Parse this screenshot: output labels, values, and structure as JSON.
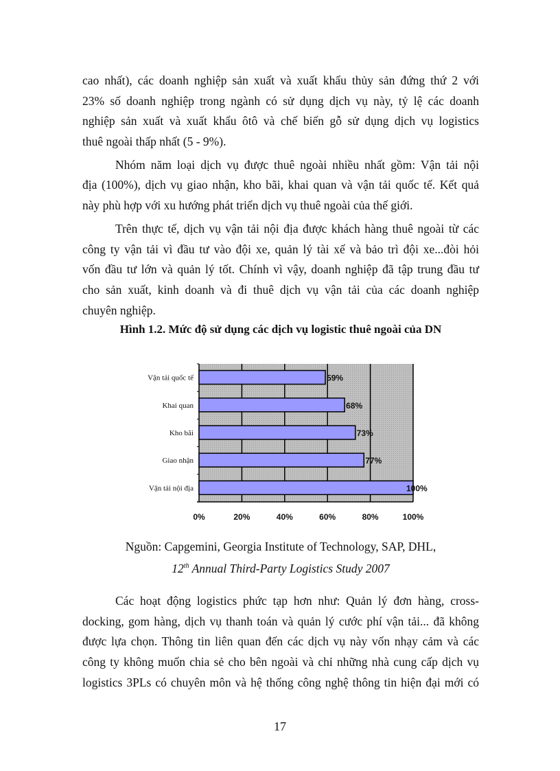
{
  "paragraphs_top": [
    {
      "indent": false,
      "lines": [
        "cao nhất), các doanh nghiệp sản xuất và xuất khẩu thủy sản đứng thứ 2 với",
        "23% số doanh nghiệp trong ngành có sử dụng dịch vụ này, tỷ lệ các doanh",
        "nghiệp sản xuất và xuất khẩu ôtô và chế biến gỗ sử dụng dịch vụ logistics",
        "thuê ngoài thấp nhất (5 - 9%)."
      ]
    },
    {
      "indent": true,
      "lines": [
        "Nhóm năm loại dịch vụ được thuê ngoài nhiều nhất gồm: Vận tải nội",
        "địa (100%), dịch vụ giao nhận, kho bãi, khai quan và vận tải quốc tế. Kết quả",
        "này phù hợp với xu hướng phát triển dịch vụ thuê ngoài của thế giới."
      ]
    },
    {
      "indent": true,
      "lines": [
        "Trên thực tế, dịch vụ vận tải nội địa được khách hàng thuê ngoài từ các",
        "công ty vận tải vì đầu tư vào đội xe, quản lý tài xế và bảo trì đội xe...đòi hỏi",
        "vốn đầu tư lớn và quản lý tốt. Chính vì vậy, doanh nghiệp đã tập trung đầu tư",
        "cho sản xuất, kinh doanh và đi thuê dịch vụ vận tải của các doanh nghiệp",
        "chuyên nghiệp."
      ]
    }
  ],
  "figure_caption": "Hình 1.2. Mức độ sử dụng các dịch vụ logistic thuê ngoài  của DN",
  "chart_data": {
    "type": "bar",
    "orientation": "horizontal",
    "categories": [
      "Vận tải quốc tế",
      "Khai quan",
      "Kho bãi",
      "Giao nhận",
      "Vận tải nội địa"
    ],
    "values": [
      59,
      68,
      73,
      77,
      100
    ],
    "data_labels": [
      "59%",
      "68%",
      "73%",
      "77%",
      "100%"
    ],
    "xticks": [
      "0%",
      "20%",
      "40%",
      "60%",
      "80%",
      "100%"
    ],
    "xlim": [
      0,
      100
    ],
    "title": "",
    "xlabel": "",
    "ylabel": "",
    "grid": true,
    "legend": "none",
    "bar_color": "#9999ff",
    "plot_background": "#c0c0c0"
  },
  "source": {
    "line1": "Nguồn: Capgemini, Georgia Institute of Technology, SAP, DHL,",
    "line2_prefix": "12",
    "line2_sup": "th",
    "line2_rest": " Annual Third-Party Logistics Study 2007"
  },
  "paragraphs_bottom": [
    {
      "indent": true,
      "continues": true,
      "lines": [
        "Các hoạt động logistics phức tạp hơn như: Quản lý đơn hàng, cross-",
        "docking, gom hàng, dịch vụ thanh toán và quản lý cước phí vận tải... đã không",
        "được lựa chọn. Thông tin liên quan đến các dịch vụ này vốn nhạy cảm và các",
        "công ty không muốn chia sẻ cho bên ngoài và chỉ những nhà cung cấp dịch vụ",
        "logistics 3PLs có chuyên môn và hệ thống công nghệ thông tin hiện đại mới có"
      ]
    }
  ],
  "page_number": "17"
}
